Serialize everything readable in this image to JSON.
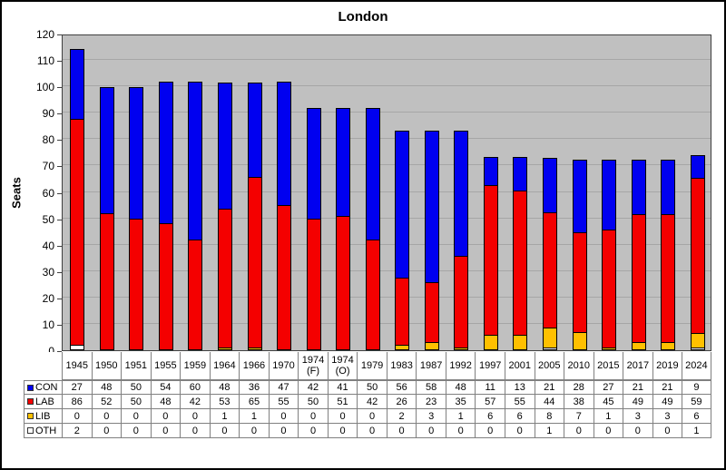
{
  "chart_data": {
    "type": "bar",
    "stacked": true,
    "title": "London",
    "xlabel": "",
    "ylabel": "Seats",
    "ylim": [
      0,
      120
    ],
    "ytick_step": 10,
    "grid": true,
    "plot_background": "#c0c0c0",
    "legend_position": "table-left",
    "categories": [
      "1945",
      "1950",
      "1951",
      "1955",
      "1959",
      "1964",
      "1966",
      "1970",
      "1974 (F)",
      "1974 (O)",
      "1979",
      "1983",
      "1987",
      "1992",
      "1997",
      "2001",
      "2005",
      "2010",
      "2015",
      "2017",
      "2019",
      "2024"
    ],
    "series": [
      {
        "name": "CON",
        "color": "#0000f0",
        "values": [
          27,
          48,
          50,
          54,
          60,
          48,
          36,
          47,
          42,
          41,
          50,
          56,
          58,
          48,
          11,
          13,
          21,
          28,
          27,
          21,
          21,
          9
        ]
      },
      {
        "name": "LAB",
        "color": "#f40000",
        "values": [
          86,
          52,
          50,
          48,
          42,
          53,
          65,
          55,
          50,
          51,
          42,
          26,
          23,
          35,
          57,
          55,
          44,
          38,
          45,
          49,
          49,
          59
        ]
      },
      {
        "name": "LIB",
        "color": "#ffc000",
        "values": [
          0,
          0,
          0,
          0,
          0,
          1,
          1,
          0,
          0,
          0,
          0,
          2,
          3,
          1,
          6,
          6,
          8,
          7,
          1,
          3,
          3,
          6
        ]
      },
      {
        "name": "OTH",
        "color": "#ffffff",
        "values": [
          2,
          0,
          0,
          0,
          0,
          0,
          0,
          0,
          0,
          0,
          0,
          0,
          0,
          0,
          0,
          0,
          1,
          0,
          0,
          0,
          0,
          1
        ]
      }
    ],
    "stack_order_bottom_to_top": [
      "OTH",
      "LIB",
      "LAB",
      "CON"
    ]
  }
}
